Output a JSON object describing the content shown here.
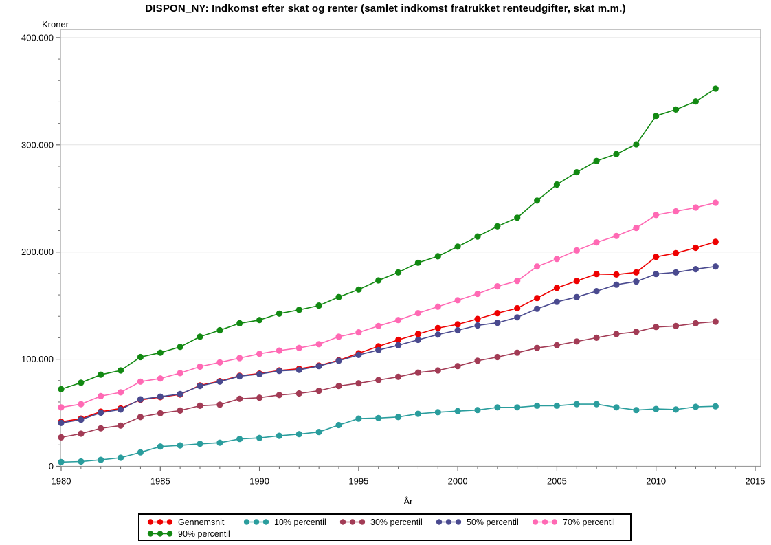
{
  "title": "DISPON_NY: Indkomst efter skat og renter (samlet indkomst fratrukket renteudgifter, skat m.m.)",
  "chart_data": {
    "type": "line",
    "xlabel": "År",
    "ylabel": "Kroner",
    "x": [
      1980,
      1981,
      1982,
      1983,
      1984,
      1985,
      1986,
      1987,
      1988,
      1989,
      1990,
      1991,
      1992,
      1993,
      1994,
      1995,
      1996,
      1997,
      1998,
      1999,
      2000,
      2001,
      2002,
      2003,
      2004,
      2005,
      2006,
      2007,
      2008,
      2009,
      2010,
      2011,
      2012,
      2013
    ],
    "xlim": [
      1980,
      2015.3
    ],
    "ylim": [
      0,
      400000
    ],
    "grid": true,
    "legend_position": "bottom",
    "xticks": {
      "values": [
        1980,
        1985,
        1990,
        1995,
        2000,
        2005,
        2010,
        2015
      ],
      "labels": [
        "1980",
        "1985",
        "1990",
        "1995",
        "2000",
        "2005",
        "2010",
        "2015"
      ],
      "minor_step": 1
    },
    "yticks": {
      "values": [
        0,
        100000,
        200000,
        300000,
        400000
      ],
      "labels": [
        "0",
        "100.000",
        "200.000",
        "300.000",
        "400.000"
      ],
      "minor_step": 20000
    },
    "series": [
      {
        "name": "Gennemsnit",
        "color": "#ee0000",
        "values": [
          41500,
          44500,
          51000,
          54000,
          62000,
          64500,
          67000,
          75500,
          79500,
          84500,
          86500,
          89500,
          91000,
          94000,
          99000,
          105500,
          112000,
          118000,
          123500,
          129000,
          132500,
          137500,
          143000,
          147500,
          157000,
          166500,
          173000,
          179500,
          179000,
          181000,
          195500,
          199000,
          204000,
          209500
        ]
      },
      {
        "name": "10% percentil",
        "color": "#2a9d9d",
        "values": [
          4000,
          4500,
          6000,
          8000,
          13000,
          18500,
          19500,
          21000,
          22000,
          25500,
          26500,
          28500,
          30000,
          32000,
          38500,
          44500,
          45000,
          46000,
          49000,
          50500,
          51500,
          52500,
          55000,
          55000,
          56500,
          56500,
          58000,
          58000,
          55000,
          52500,
          53500,
          53000,
          55500,
          56000
        ]
      },
      {
        "name": "30% percentil",
        "color": "#a23b55",
        "values": [
          27000,
          30500,
          35500,
          38000,
          46000,
          49500,
          52000,
          56500,
          57500,
          63000,
          64000,
          66500,
          68000,
          70500,
          75000,
          77500,
          80500,
          83500,
          87500,
          89500,
          93500,
          98500,
          102000,
          106000,
          110500,
          113000,
          116500,
          120000,
          123500,
          125500,
          130000,
          131000,
          133500,
          135000
        ]
      },
      {
        "name": "50% percentil",
        "color": "#4a4a8f",
        "values": [
          40500,
          43500,
          50000,
          53000,
          62500,
          65000,
          67500,
          75000,
          79000,
          84000,
          86000,
          89000,
          90000,
          93500,
          98500,
          104000,
          108500,
          113000,
          118000,
          123000,
          127000,
          131500,
          134000,
          139000,
          147000,
          153500,
          158000,
          163500,
          169500,
          172500,
          179500,
          181000,
          184000,
          186500
        ]
      },
      {
        "name": "70% percentil",
        "color": "#ff69b4",
        "values": [
          55000,
          58000,
          65500,
          69000,
          79000,
          82000,
          87000,
          93000,
          97000,
          101000,
          105000,
          108000,
          110500,
          114000,
          121000,
          125000,
          131000,
          136500,
          143000,
          149000,
          155000,
          161000,
          168000,
          173000,
          186500,
          193500,
          201500,
          209000,
          215000,
          222500,
          234500,
          238000,
          241500,
          246000
        ]
      },
      {
        "name": "90% percentil",
        "color": "#128912",
        "values": [
          72000,
          78000,
          85500,
          89500,
          102000,
          106000,
          111500,
          121000,
          127000,
          133500,
          136500,
          142500,
          146000,
          150000,
          158000,
          165000,
          173500,
          181000,
          190000,
          196000,
          205000,
          214500,
          224000,
          232000,
          248000,
          263000,
          274500,
          285000,
          291500,
          300500,
          327000,
          333000,
          340500,
          352500
        ]
      }
    ]
  }
}
